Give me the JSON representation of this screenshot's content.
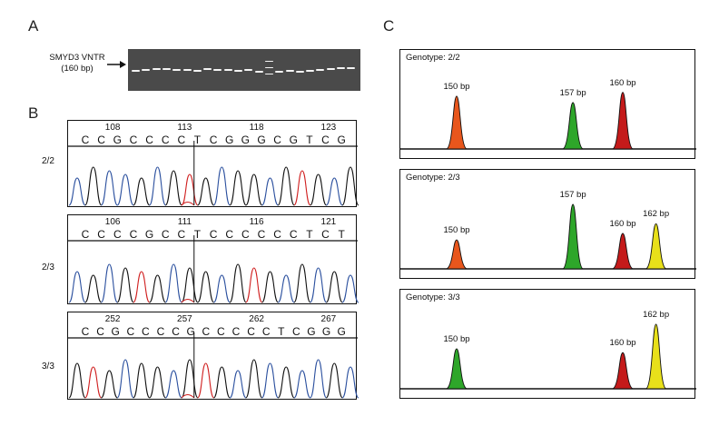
{
  "panels": {
    "a": "A",
    "b": "B",
    "c": "C"
  },
  "gel": {
    "label_line1": "SMYD3 VNTR",
    "label_line2": "(160 bp)",
    "arrow": "right-arrow-icon"
  },
  "chromatograms": [
    {
      "genotype": "2/2",
      "numbers": [
        "108",
        "113",
        "118",
        "123"
      ],
      "bases": [
        "C",
        "C",
        "G",
        "C",
        "C",
        "C",
        "C",
        "T",
        "C",
        "G",
        "G",
        "G",
        "C",
        "G",
        "T",
        "C",
        "G"
      ]
    },
    {
      "genotype": "2/3",
      "numbers": [
        "106",
        "111",
        "116",
        "121"
      ],
      "bases": [
        "C",
        "C",
        "C",
        "C",
        "G",
        "C",
        "C",
        "T",
        "C",
        "C",
        "C",
        "C",
        "C",
        "C",
        "T",
        "C",
        "T"
      ]
    },
    {
      "genotype": "3/3",
      "numbers": [
        "252",
        "257",
        "262",
        "267"
      ],
      "bases": [
        "C",
        "C",
        "G",
        "C",
        "C",
        "C",
        "C",
        "G",
        "C",
        "C",
        "C",
        "C",
        "C",
        "T",
        "C",
        "G",
        "G",
        "G"
      ]
    }
  ],
  "fragments": [
    {
      "title": "Genotype: 2/2",
      "peaks": [
        {
          "label": "150 bp",
          "size": 150,
          "height": 0.82,
          "color": "#e8561c"
        },
        {
          "label": "157 bp",
          "size": 157,
          "height": 0.72,
          "color": "#2ea62a"
        },
        {
          "label": "160 bp",
          "size": 160,
          "height": 0.88,
          "color": "#c41a1a"
        }
      ]
    },
    {
      "title": "Genotype: 2/3",
      "peaks": [
        {
          "label": "150 bp",
          "size": 150,
          "height": 0.45,
          "color": "#e8561c"
        },
        {
          "label": "157 bp",
          "size": 157,
          "height": 1.0,
          "color": "#2ea62a"
        },
        {
          "label": "160 bp",
          "size": 160,
          "height": 0.55,
          "color": "#c41a1a"
        },
        {
          "label": "162 bp",
          "size": 162,
          "height": 0.7,
          "color": "#e8e01a"
        }
      ]
    },
    {
      "title": "Genotype: 3/3",
      "peaks": [
        {
          "label": "150 bp",
          "size": 150,
          "height": 0.62,
          "color": "#2ea62a"
        },
        {
          "label": "160 bp",
          "size": 160,
          "height": 0.56,
          "color": "#c41a1a"
        },
        {
          "label": "162 bp",
          "size": 162,
          "height": 1.0,
          "color": "#e8e01a"
        }
      ]
    }
  ],
  "colors": {
    "blue": "#2a4f9e",
    "black": "#111111",
    "red": "#d01f1f"
  }
}
